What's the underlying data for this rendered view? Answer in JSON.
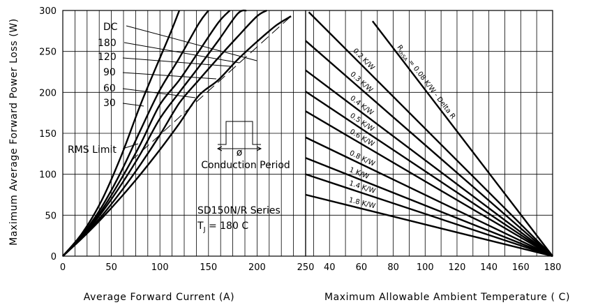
{
  "chart_data": [
    {
      "type": "line",
      "xlabel": "Average Forward Current (A)",
      "ylabel": "Maximum Average Forward Power Loss (W)",
      "xlim": [
        0,
        250
      ],
      "ylim": [
        0,
        300
      ],
      "xticks": [
        0,
        50,
        100,
        150,
        200,
        250
      ],
      "yticks": [
        0,
        50,
        100,
        150,
        200,
        250,
        300
      ],
      "grid": true,
      "series": [
        {
          "name": "DC",
          "x": [
            0,
            20,
            40,
            60,
            80,
            100,
            120,
            140,
            160,
            180,
            200,
            220,
            235
          ],
          "y": [
            0,
            22,
            46,
            72,
            100,
            130,
            162,
            196,
            215,
            240,
            262,
            282,
            293
          ]
        },
        {
          "name": "180",
          "x": [
            0,
            20,
            40,
            60,
            80,
            100,
            120,
            140,
            160,
            180,
            200,
            210
          ],
          "y": [
            0,
            23,
            49,
            79,
            112,
            148,
            187,
            215,
            242,
            268,
            293,
            300
          ]
        },
        {
          "name": "120",
          "x": [
            0,
            20,
            40,
            60,
            80,
            100,
            120,
            140,
            160,
            180,
            189
          ],
          "y": [
            0,
            24,
            53,
            87,
            125,
            168,
            200,
            231,
            263,
            296,
            300
          ]
        },
        {
          "name": "90",
          "x": [
            0,
            20,
            40,
            60,
            80,
            100,
            120,
            140,
            160,
            172
          ],
          "y": [
            0,
            25,
            56,
            94,
            137,
            185,
            215,
            250,
            285,
            300
          ]
        },
        {
          "name": "60",
          "x": [
            0,
            20,
            40,
            60,
            80,
            100,
            120,
            140,
            150
          ],
          "y": [
            0,
            26,
            60,
            103,
            154,
            203,
            242,
            284,
            300
          ]
        },
        {
          "name": "30",
          "x": [
            0,
            20,
            40,
            60,
            80,
            100,
            110,
            120
          ],
          "y": [
            0,
            28,
            68,
            122,
            185,
            242,
            270,
            300
          ]
        }
      ],
      "rms_limit": {
        "name": "RMS Limit",
        "x": [
          70,
          235
        ],
        "y": [
          116,
          293
        ]
      },
      "annotations": {
        "conduction_period": "Conduction Period",
        "phi": "ø",
        "series_title": "SD150N/R Series",
        "tj_text": "T",
        "tj_sub": "J",
        "tj_value": " = 180 C"
      }
    },
    {
      "type": "line",
      "xlabel": "Maximum Allowable Ambient Temperature ( C)",
      "xlim": [
        25,
        180
      ],
      "ylim": [
        0,
        300
      ],
      "xticks": [
        40,
        60,
        80,
        100,
        120,
        140,
        160,
        180
      ],
      "grid": true,
      "converge_point": {
        "x": 180,
        "y": 0
      },
      "series": [
        {
          "name": "R thSA = 0.08 K/W - Delta R",
          "label_main": "R",
          "label_sub": "thSA",
          "label_rest": " = 0.08 K/W - Delta R",
          "x": [
            67,
            180
          ],
          "y": [
            287,
            0
          ]
        },
        {
          "name": "0.2 K/W",
          "x": [
            27,
            180
          ],
          "y": [
            298,
            0
          ]
        },
        {
          "name": "0.3 K/W",
          "x": [
            25,
            180
          ],
          "y": [
            263,
            0
          ]
        },
        {
          "name": "0.4 K/W",
          "x": [
            25,
            180
          ],
          "y": [
            227,
            0
          ]
        },
        {
          "name": "0.5 K/W",
          "x": [
            25,
            180
          ],
          "y": [
            201,
            0
          ]
        },
        {
          "name": "0.6 K/W",
          "x": [
            25,
            180
          ],
          "y": [
            177,
            0
          ]
        },
        {
          "name": "0.8 K/W",
          "x": [
            25,
            180
          ],
          "y": [
            145,
            0
          ]
        },
        {
          "name": "1 K/W",
          "x": [
            25,
            180
          ],
          "y": [
            120,
            0
          ]
        },
        {
          "name": "1.4 K/W",
          "x": [
            25,
            180
          ],
          "y": [
            100,
            0
          ]
        },
        {
          "name": "1.8 K/W",
          "x": [
            25,
            180
          ],
          "y": [
            75,
            0
          ]
        }
      ]
    }
  ]
}
